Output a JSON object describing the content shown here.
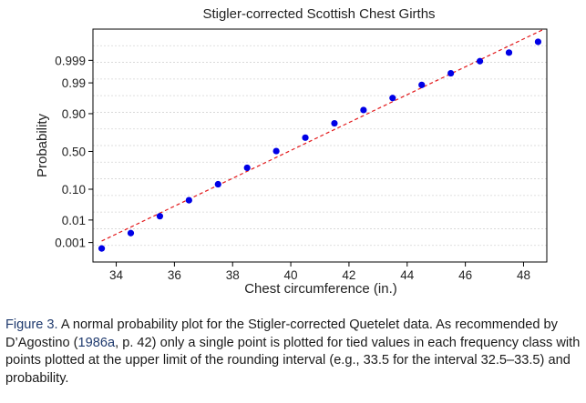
{
  "chart_data": {
    "type": "scatter",
    "title": "Stigler-corrected Scottish Chest Girths",
    "xlabel": "Chest circumference (in.)",
    "ylabel": "Probability",
    "xlim": [
      33.2,
      48.8
    ],
    "xticks": [
      34,
      36,
      38,
      40,
      42,
      44,
      46,
      48
    ],
    "y_scale": "normal-probability",
    "ytick_labels": [
      "0.001",
      "0.01",
      "0.10",
      "0.50",
      "0.90",
      "0.99",
      "0.999"
    ],
    "series": [
      {
        "x": [
          33.5,
          34.5,
          35.5,
          36.5,
          37.5,
          38.5,
          39.5,
          40.5,
          41.5,
          42.5,
          43.5,
          44.5,
          45.5,
          46.5,
          47.5,
          48.5
        ],
        "y": [
          0.0005,
          0.0028,
          0.014,
          0.049,
          0.133,
          0.29,
          0.505,
          0.68,
          0.83,
          0.92,
          0.965,
          0.988,
          0.996,
          0.9989,
          0.9996,
          0.9999
        ],
        "color": "#0000e6"
      }
    ],
    "fit_line": {
      "style": "dashed",
      "color": "#e31a1c"
    },
    "grid": "horizontal"
  },
  "caption": {
    "label": "Figure 3.",
    "text1": " A normal probability plot for the Stigler-corrected Quetelet data. As recommended by D’Agostino (",
    "cite": "1986a",
    "text2": ", p. 42) only a single point is plotted for tied values in each frequency class with points plotted at the upper limit of the rounding interval (e.g., 33.5 for the interval 32.5–33.5) and probability."
  }
}
